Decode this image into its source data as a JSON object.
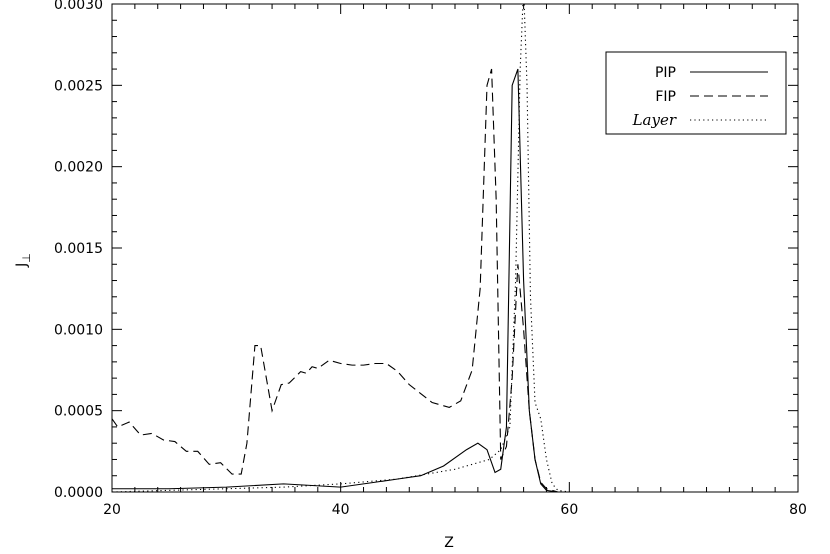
{
  "chart_data": {
    "type": "line",
    "xlabel": "Z",
    "ylabel": "J",
    "ylabel_subscript": "⊥",
    "xlim": [
      20,
      80
    ],
    "ylim": [
      0,
      0.003
    ],
    "x_ticks": [
      20,
      40,
      60,
      80
    ],
    "x_tick_labels": [
      "20",
      "40",
      "60",
      "80"
    ],
    "y_ticks": [
      0,
      0.0005,
      0.001,
      0.0015,
      0.002,
      0.0025,
      0.003
    ],
    "y_tick_labels": [
      "0.0000",
      "0.0005",
      "0.0010",
      "0.0015",
      "0.0020",
      "0.0025",
      "0.0030"
    ],
    "grid": false,
    "legend_position": "top-right",
    "series": [
      {
        "name": "PIP",
        "style": "solid",
        "x": [
          20,
          25,
          30,
          35,
          40,
          43,
          45,
          47,
          49,
          51,
          52,
          52.8,
          53.5,
          54,
          54.5,
          55,
          55.5,
          56,
          56.5,
          57,
          57.5,
          58,
          59,
          60,
          80
        ],
        "y": [
          2e-05,
          2e-05,
          3e-05,
          5e-05,
          3e-05,
          6e-05,
          8e-05,
          0.0001,
          0.00016,
          0.00026,
          0.0003,
          0.00026,
          0.00012,
          0.00014,
          0.0004,
          0.0025,
          0.0026,
          0.0013,
          0.0005,
          0.0002,
          5e-05,
          1e-05,
          0.0,
          0.0,
          0.0
        ]
      },
      {
        "name": "FIP",
        "style": "dashed",
        "x": [
          20,
          20.5,
          21.5,
          22.5,
          23.5,
          24.5,
          25.5,
          26.5,
          27.5,
          28.5,
          29.5,
          30.5,
          31.3,
          31.8,
          32.5,
          33,
          34,
          34.8,
          35.5,
          36.5,
          37,
          37.5,
          38,
          39,
          40,
          41,
          42,
          43,
          44,
          45,
          46,
          48,
          49.5,
          50.5,
          51.5,
          52.2,
          52.8,
          53.2,
          53.6,
          54,
          54.5,
          55,
          55.5,
          56,
          56.5,
          57,
          57.5,
          58,
          59,
          60,
          80
        ],
        "y": [
          0.00045,
          0.0004,
          0.00043,
          0.00035,
          0.00036,
          0.00032,
          0.00031,
          0.00025,
          0.00025,
          0.00017,
          0.00018,
          0.00011,
          0.00011,
          0.0003,
          0.0009,
          0.0009,
          0.0005,
          0.00066,
          0.00067,
          0.00074,
          0.00073,
          0.00077,
          0.00076,
          0.00081,
          0.00079,
          0.00078,
          0.00078,
          0.00079,
          0.00079,
          0.00074,
          0.00066,
          0.00055,
          0.00052,
          0.00056,
          0.00075,
          0.00125,
          0.0025,
          0.0026,
          0.0018,
          0.0002,
          0.00028,
          0.0007,
          0.0014,
          0.001,
          0.0005,
          0.0002,
          6e-05,
          2e-05,
          0.0,
          0.0,
          0.0
        ]
      },
      {
        "name": "Layer",
        "style": "dotted",
        "x": [
          20,
          25,
          30,
          35,
          40,
          45,
          50,
          53,
          54,
          54.8,
          55.3,
          55.7,
          56,
          56.3,
          56.6,
          57,
          57.5,
          58,
          58.5,
          59,
          60,
          80
        ],
        "y": [
          0.0,
          1e-05,
          2e-05,
          3e-05,
          5e-05,
          8e-05,
          0.00014,
          0.0002,
          0.00026,
          0.0004,
          0.0013,
          0.0026,
          0.0031,
          0.0025,
          0.0012,
          0.00055,
          0.00045,
          0.0002,
          5e-05,
          1e-05,
          0.0,
          0.0
        ]
      }
    ]
  }
}
